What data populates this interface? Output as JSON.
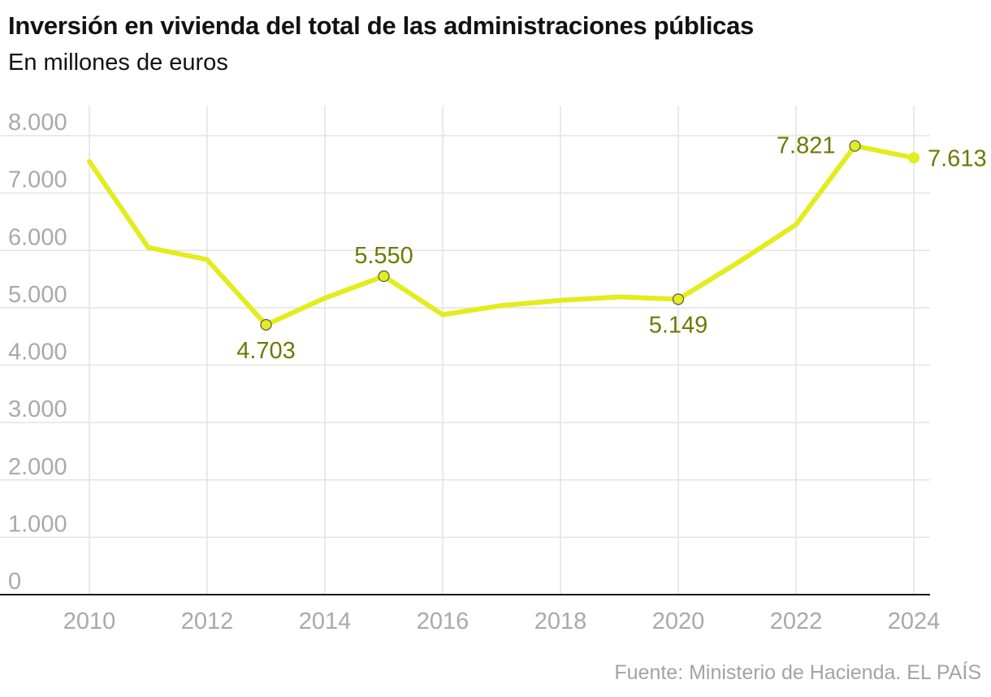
{
  "chart_data": {
    "type": "line",
    "title": "Inversión en vivienda del total de las administraciones públicas",
    "subtitle": "En millones de euros",
    "source": "Fuente: Ministerio de Hacienda. EL PAÍS",
    "xlabel": "",
    "ylabel": "",
    "xlim": [
      2010,
      2024
    ],
    "ylim": [
      0,
      8000
    ],
    "x_ticks": [
      2010,
      2012,
      2014,
      2016,
      2018,
      2020,
      2022,
      2024
    ],
    "x_tick_labels": [
      "2010",
      "2012",
      "2014",
      "2016",
      "2018",
      "2020",
      "2022",
      "2024"
    ],
    "y_ticks": [
      0,
      1000,
      2000,
      3000,
      4000,
      5000,
      6000,
      7000,
      8000
    ],
    "y_tick_labels": [
      "0",
      "1.000",
      "2.000",
      "3.000",
      "4.000",
      "5.000",
      "6.000",
      "7.000",
      "8.000"
    ],
    "grid": true,
    "legend": "none",
    "line_color": "#e3ec1d",
    "label_color": "#6b7a00",
    "series": [
      {
        "x": [
          2010,
          2011,
          2012,
          2013,
          2014,
          2015,
          2016,
          2017,
          2018,
          2019,
          2020,
          2021,
          2022,
          2023,
          2024
        ],
        "values": [
          7550,
          6050,
          5840,
          4703,
          5170,
          5550,
          4880,
          5040,
          5130,
          5190,
          5149,
          5780,
          6450,
          7821,
          7613
        ]
      }
    ],
    "annotations": [
      {
        "x": 2013,
        "y": 4703,
        "text": "4.703",
        "position": "below",
        "marker": "open-circle"
      },
      {
        "x": 2015,
        "y": 5550,
        "text": "5.550",
        "position": "above",
        "marker": "open-circle"
      },
      {
        "x": 2020,
        "y": 5149,
        "text": "5.149",
        "position": "below",
        "marker": "open-circle"
      },
      {
        "x": 2023,
        "y": 7821,
        "text": "7.821",
        "position": "left",
        "marker": "open-circle"
      },
      {
        "x": 2024,
        "y": 7613,
        "text": "7.613",
        "position": "right",
        "marker": "filled-circle"
      }
    ]
  }
}
